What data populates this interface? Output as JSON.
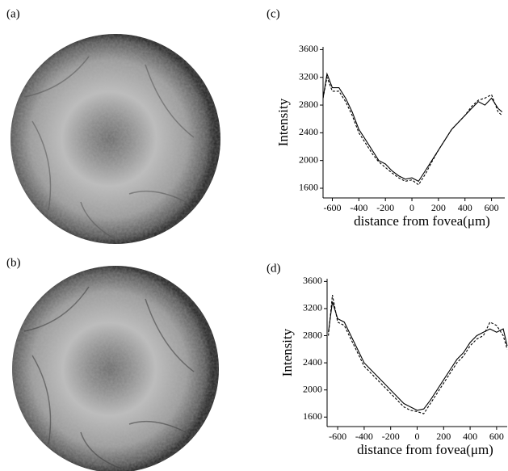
{
  "panel_labels": [
    "(a)",
    "(b)",
    "(c)",
    "(d)"
  ],
  "chart_data": [
    {
      "type": "line",
      "ylabel": "Intensity",
      "xlabel": "distance from fovea(μm)",
      "xlim": [
        -670,
        700
      ],
      "ylim": [
        1460,
        3640
      ],
      "xticks": [
        -600,
        -400,
        -200,
        0,
        200,
        400,
        600
      ],
      "yticks": [
        1600,
        2000,
        2400,
        2800,
        3200,
        3600
      ],
      "x": [
        -670,
        -640,
        -600,
        -550,
        -500,
        -450,
        -400,
        -350,
        -300,
        -250,
        -200,
        -150,
        -100,
        -50,
        0,
        50,
        100,
        150,
        200,
        250,
        300,
        350,
        400,
        450,
        500,
        550,
        600,
        650,
        680
      ],
      "series": [
        {
          "color": "#000000",
          "style": "solid",
          "values": [
            2900,
            3250,
            3050,
            3050,
            2900,
            2700,
            2450,
            2300,
            2150,
            2000,
            1950,
            1850,
            1780,
            1730,
            1750,
            1700,
            1850,
            2000,
            2150,
            2300,
            2450,
            2550,
            2650,
            2750,
            2850,
            2800,
            2900,
            2750,
            2700
          ]
        },
        {
          "color": "#000000",
          "style": "dashed",
          "values": [
            2900,
            3200,
            3000,
            3000,
            2850,
            2650,
            2400,
            2250,
            2100,
            1980,
            1900,
            1820,
            1750,
            1700,
            1720,
            1650,
            1800,
            1980,
            2150,
            2300,
            2450,
            2550,
            2650,
            2780,
            2870,
            2900,
            2950,
            2700,
            2650
          ]
        }
      ]
    },
    {
      "type": "line",
      "ylabel": "Intensity",
      "xlabel": "distance from fovea(μm)",
      "xlim": [
        -680,
        680
      ],
      "ylim": [
        1460,
        3640
      ],
      "xticks": [
        -600,
        -400,
        -200,
        0,
        200,
        400,
        600
      ],
      "yticks": [
        1600,
        2000,
        2400,
        2800,
        3200,
        3600
      ],
      "x": [
        -670,
        -640,
        -600,
        -550,
        -500,
        -450,
        -400,
        -350,
        -300,
        -250,
        -200,
        -150,
        -100,
        -50,
        0,
        50,
        100,
        150,
        200,
        250,
        300,
        350,
        400,
        450,
        500,
        550,
        600,
        650,
        680
      ],
      "series": [
        {
          "color": "#000000",
          "style": "solid",
          "values": [
            2850,
            3300,
            3050,
            3000,
            2800,
            2600,
            2400,
            2300,
            2200,
            2100,
            2000,
            1900,
            1800,
            1750,
            1700,
            1720,
            1850,
            2000,
            2150,
            2300,
            2450,
            2550,
            2700,
            2800,
            2850,
            2900,
            2850,
            2900,
            2650
          ]
        },
        {
          "color": "#000000",
          "style": "dashed",
          "values": [
            2800,
            3400,
            3000,
            2950,
            2750,
            2550,
            2350,
            2250,
            2150,
            2050,
            1950,
            1850,
            1750,
            1700,
            1680,
            1650,
            1800,
            1950,
            2100,
            2250,
            2400,
            2500,
            2650,
            2750,
            2800,
            3000,
            2950,
            2800,
            2600
          ]
        }
      ]
    }
  ]
}
